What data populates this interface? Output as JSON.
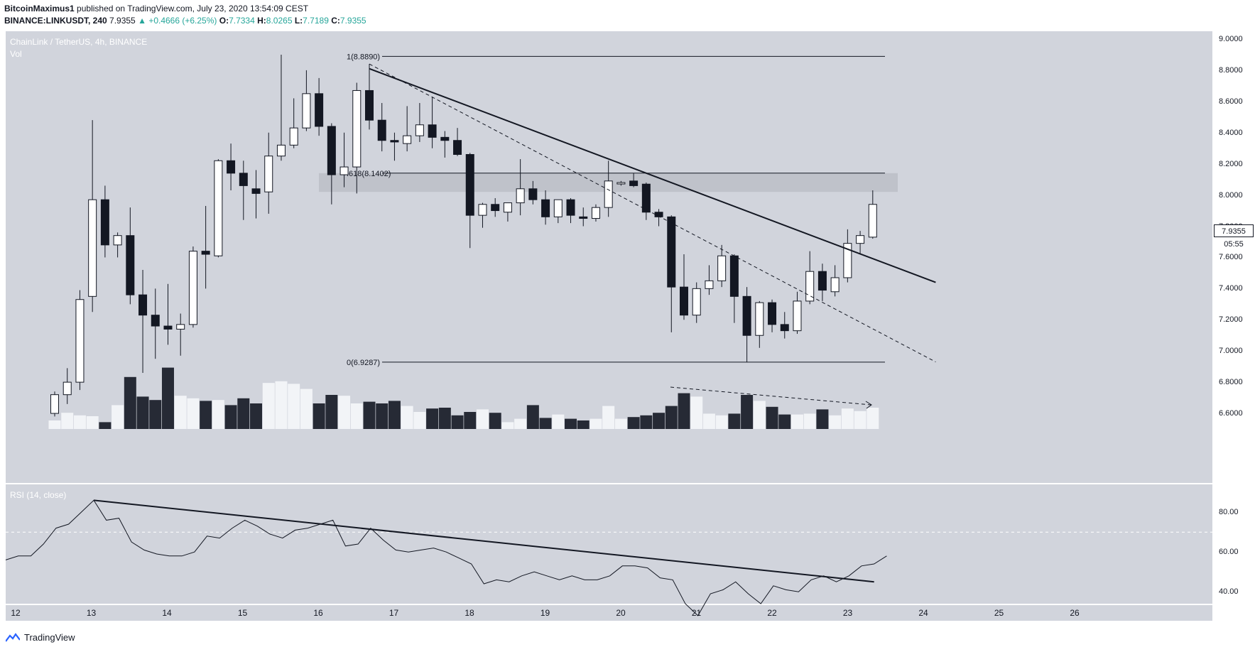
{
  "header": {
    "author": "BitcoinMaximus1",
    "published": "published on TradingView.com, July 23, 2020 13:54:09 CEST",
    "symbol": "BINANCE:LINKUSDT, 240",
    "last": "7.9355",
    "change": "+0.4666 (+6.25%)",
    "open_k": "O:",
    "open_v": "7.7334",
    "high_k": "H:",
    "high_v": "8.0265",
    "low_k": "L:",
    "low_v": "7.7189",
    "close_k": "C:",
    "close_v": "7.9355"
  },
  "price_panel": {
    "title": "ChainLink / TetherUS, 4h, BINANCE",
    "vol_label": "Vol"
  },
  "rsi_panel": {
    "title": "RSI (14, close)"
  },
  "price_tag": "7.9355",
  "timer_tag": "05:55",
  "footer": {
    "brand": "TradingView"
  },
  "colors": {
    "bg": "#d1d4dc",
    "up": "#ffffff",
    "down": "#131722",
    "line": "#131722"
  },
  "chart_data": [
    {
      "type": "candlestick",
      "title": "ChainLink / TetherUS, 4h, BINANCE",
      "y_axis_ticks": [
        "9.0000",
        "8.8000",
        "8.6000",
        "8.4000",
        "8.2000",
        "8.0000",
        "7.8000",
        "7.6000",
        "7.4000",
        "7.2000",
        "7.0000",
        "6.8000",
        "6.6000"
      ],
      "x_axis_ticks": [
        "12",
        "13",
        "14",
        "15",
        "16",
        "17",
        "18",
        "19",
        "20",
        "21",
        "22",
        "23",
        "24",
        "25",
        "26"
      ],
      "ylim": [
        6.5,
        9.05
      ],
      "candles": [
        {
          "o": 6.6,
          "h": 6.74,
          "l": 6.58,
          "c": 6.72
        },
        {
          "o": 6.72,
          "h": 6.89,
          "l": 6.66,
          "c": 6.8
        },
        {
          "o": 6.8,
          "h": 7.39,
          "l": 6.75,
          "c": 7.33
        },
        {
          "o": 7.35,
          "h": 8.48,
          "l": 7.25,
          "c": 7.97
        },
        {
          "o": 7.97,
          "h": 8.06,
          "l": 7.6,
          "c": 7.68
        },
        {
          "o": 7.68,
          "h": 7.76,
          "l": 7.6,
          "c": 7.74
        },
        {
          "o": 7.74,
          "h": 7.92,
          "l": 7.3,
          "c": 7.36
        },
        {
          "o": 7.36,
          "h": 7.52,
          "l": 6.86,
          "c": 7.23
        },
        {
          "o": 7.23,
          "h": 7.4,
          "l": 6.95,
          "c": 7.16
        },
        {
          "o": 7.16,
          "h": 7.43,
          "l": 7.04,
          "c": 7.14
        },
        {
          "o": 7.14,
          "h": 7.24,
          "l": 6.97,
          "c": 7.17
        },
        {
          "o": 7.17,
          "h": 7.67,
          "l": 7.15,
          "c": 7.64
        },
        {
          "o": 7.64,
          "h": 7.93,
          "l": 7.4,
          "c": 7.62
        },
        {
          "o": 7.61,
          "h": 8.23,
          "l": 7.6,
          "c": 8.22
        },
        {
          "o": 8.22,
          "h": 8.33,
          "l": 8.03,
          "c": 8.14
        },
        {
          "o": 8.14,
          "h": 8.22,
          "l": 7.84,
          "c": 8.06
        },
        {
          "o": 8.04,
          "h": 8.16,
          "l": 7.85,
          "c": 8.01
        },
        {
          "o": 8.02,
          "h": 8.4,
          "l": 7.88,
          "c": 8.25
        },
        {
          "o": 8.25,
          "h": 8.9,
          "l": 8.22,
          "c": 8.32
        },
        {
          "o": 8.32,
          "h": 8.62,
          "l": 8.3,
          "c": 8.43
        },
        {
          "o": 8.43,
          "h": 8.8,
          "l": 8.41,
          "c": 8.65
        },
        {
          "o": 8.65,
          "h": 8.75,
          "l": 8.38,
          "c": 8.44
        },
        {
          "o": 8.44,
          "h": 8.46,
          "l": 7.94,
          "c": 8.13
        },
        {
          "o": 8.13,
          "h": 8.4,
          "l": 8.05,
          "c": 8.18
        },
        {
          "o": 8.18,
          "h": 8.72,
          "l": 8.01,
          "c": 8.67
        },
        {
          "o": 8.67,
          "h": 8.84,
          "l": 8.42,
          "c": 8.48
        },
        {
          "o": 8.48,
          "h": 8.59,
          "l": 8.28,
          "c": 8.35
        },
        {
          "o": 8.35,
          "h": 8.4,
          "l": 8.22,
          "c": 8.34
        },
        {
          "o": 8.33,
          "h": 8.57,
          "l": 8.28,
          "c": 8.38
        },
        {
          "o": 8.38,
          "h": 8.59,
          "l": 8.34,
          "c": 8.45
        },
        {
          "o": 8.45,
          "h": 8.63,
          "l": 8.3,
          "c": 8.37
        },
        {
          "o": 8.37,
          "h": 8.41,
          "l": 8.24,
          "c": 8.35
        },
        {
          "o": 8.35,
          "h": 8.43,
          "l": 8.25,
          "c": 8.26
        },
        {
          "o": 8.26,
          "h": 8.27,
          "l": 7.66,
          "c": 7.87
        },
        {
          "o": 7.87,
          "h": 7.95,
          "l": 7.79,
          "c": 7.94
        },
        {
          "o": 7.94,
          "h": 7.98,
          "l": 7.86,
          "c": 7.9
        },
        {
          "o": 7.89,
          "h": 7.95,
          "l": 7.83,
          "c": 7.95
        },
        {
          "o": 7.95,
          "h": 8.23,
          "l": 7.87,
          "c": 8.04
        },
        {
          "o": 8.04,
          "h": 8.09,
          "l": 7.94,
          "c": 7.97
        },
        {
          "o": 7.97,
          "h": 8.03,
          "l": 7.81,
          "c": 7.86
        },
        {
          "o": 7.86,
          "h": 7.97,
          "l": 7.82,
          "c": 7.97
        },
        {
          "o": 7.97,
          "h": 7.98,
          "l": 7.82,
          "c": 7.87
        },
        {
          "o": 7.86,
          "h": 7.92,
          "l": 7.8,
          "c": 7.85
        },
        {
          "o": 7.85,
          "h": 7.94,
          "l": 7.83,
          "c": 7.92
        },
        {
          "o": 7.92,
          "h": 8.22,
          "l": 7.86,
          "c": 8.09
        },
        {
          "o": 8.08,
          "h": 8.09,
          "l": 8.06,
          "c": 8.08
        },
        {
          "o": 8.09,
          "h": 8.14,
          "l": 8.05,
          "c": 8.06
        },
        {
          "o": 8.07,
          "h": 8.08,
          "l": 7.84,
          "c": 7.89
        },
        {
          "o": 7.89,
          "h": 7.91,
          "l": 7.8,
          "c": 7.86
        },
        {
          "o": 7.86,
          "h": 7.87,
          "l": 7.12,
          "c": 7.41
        },
        {
          "o": 7.41,
          "h": 7.62,
          "l": 7.2,
          "c": 7.23
        },
        {
          "o": 7.23,
          "h": 7.44,
          "l": 7.18,
          "c": 7.4
        },
        {
          "o": 7.4,
          "h": 7.55,
          "l": 7.36,
          "c": 7.45
        },
        {
          "o": 7.45,
          "h": 7.68,
          "l": 7.41,
          "c": 7.61
        },
        {
          "o": 7.61,
          "h": 7.62,
          "l": 7.18,
          "c": 7.35
        },
        {
          "o": 7.35,
          "h": 7.41,
          "l": 6.93,
          "c": 7.1
        },
        {
          "o": 7.1,
          "h": 7.32,
          "l": 7.02,
          "c": 7.31
        },
        {
          "o": 7.31,
          "h": 7.33,
          "l": 7.12,
          "c": 7.17
        },
        {
          "o": 7.17,
          "h": 7.25,
          "l": 7.08,
          "c": 7.13
        },
        {
          "o": 7.13,
          "h": 7.38,
          "l": 7.11,
          "c": 7.32
        },
        {
          "o": 7.32,
          "h": 7.64,
          "l": 7.3,
          "c": 7.51
        },
        {
          "o": 7.51,
          "h": 7.56,
          "l": 7.32,
          "c": 7.39
        },
        {
          "o": 7.38,
          "h": 7.55,
          "l": 7.35,
          "c": 7.47
        },
        {
          "o": 7.47,
          "h": 7.78,
          "l": 7.44,
          "c": 7.69
        },
        {
          "o": 7.69,
          "h": 7.77,
          "l": 7.62,
          "c": 7.74
        },
        {
          "o": 7.73,
          "h": 8.03,
          "l": 7.72,
          "c": 7.94
        }
      ],
      "volume_max": 1.0,
      "volume": [
        0.1,
        0.19,
        0.16,
        0.15,
        0.08,
        0.28,
        0.61,
        0.38,
        0.34,
        0.72,
        0.39,
        0.36,
        0.33,
        0.34,
        0.28,
        0.36,
        0.3,
        0.54,
        0.56,
        0.53,
        0.47,
        0.3,
        0.4,
        0.39,
        0.3,
        0.32,
        0.3,
        0.33,
        0.27,
        0.2,
        0.24,
        0.25,
        0.16,
        0.2,
        0.23,
        0.19,
        0.08,
        0.12,
        0.28,
        0.13,
        0.17,
        0.12,
        0.1,
        0.12,
        0.27,
        0.12,
        0.14,
        0.16,
        0.19,
        0.27,
        0.42,
        0.38,
        0.18,
        0.16,
        0.18,
        0.4,
        0.33,
        0.26,
        0.17,
        0.17,
        0.18,
        0.23,
        0.16,
        0.24,
        0.21,
        0.25
      ],
      "annotations": {
        "fib_levels": [
          {
            "label": "1(8.8890)",
            "value": 8.889
          },
          {
            "label": ".618(8.1402)",
            "value": 8.1402
          },
          {
            "label": "0(6.9287)",
            "value": 6.9287
          }
        ],
        "resistance_zone": [
          8.02,
          8.14
        ],
        "descending_trendline": {
          "from_candle": 25,
          "from_value": 8.81,
          "to_candle": 70,
          "to_value": 7.44
        },
        "dashed_line": {
          "from_candle": 25,
          "from_value": 8.84,
          "to_candle": 70,
          "to_value": 6.93
        }
      }
    },
    {
      "type": "line",
      "title": "RSI (14, close)",
      "y_axis_ticks": [
        "80.00",
        "60.00",
        "40.00"
      ],
      "ylim": [
        34,
        94
      ],
      "overbought": 70,
      "values": [
        56,
        58,
        58,
        64,
        72,
        74,
        80,
        86,
        76,
        77,
        65,
        61,
        59,
        58,
        58,
        60,
        68,
        67,
        72,
        76,
        73,
        69,
        67,
        71,
        72,
        74,
        76,
        63,
        64,
        72,
        66,
        61,
        60,
        61,
        62,
        60,
        57,
        54,
        44,
        46,
        45,
        48,
        50,
        48,
        46,
        48,
        46,
        46,
        48,
        53,
        53,
        52,
        47,
        46,
        34,
        28,
        39,
        41,
        45,
        39,
        34,
        43,
        41,
        40,
        46,
        48,
        45,
        48,
        53,
        54,
        58
      ],
      "trendline": {
        "from_index": 7,
        "from_value": 86,
        "to_index": 69,
        "to_value": 45
      }
    }
  ]
}
